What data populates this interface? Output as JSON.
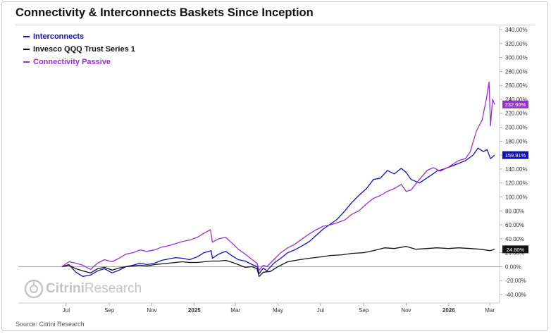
{
  "title": "Connectivity & Interconnects Baskets Since Inception",
  "source": "Source: Citrini Research",
  "watermark": {
    "brand": "Citrini",
    "brand_suffix": "Research",
    "icon": "citrini-logo-icon"
  },
  "chart_data": {
    "type": "line",
    "title": "Connectivity & Interconnects Baskets Since Inception",
    "xlabel": "",
    "ylabel": "",
    "y_axis_side": "right",
    "y_format": "percent",
    "ylim": [
      -45,
      350
    ],
    "yticks": [
      340,
      320,
      300,
      280,
      260,
      240,
      220,
      200,
      180,
      160,
      140,
      120,
      100,
      80,
      60,
      40,
      20,
      0,
      -20,
      -40
    ],
    "x_start": "2024-06-20",
    "x_end": "2026-03-12",
    "xticks": [
      {
        "date": "2024-07-01",
        "label": "Jul",
        "bold": false
      },
      {
        "date": "2024-09-01",
        "label": "Sep",
        "bold": false
      },
      {
        "date": "2024-11-01",
        "label": "Nov",
        "bold": false
      },
      {
        "date": "2025-01-01",
        "label": "2025",
        "bold": true
      },
      {
        "date": "2025-03-01",
        "label": "Mar",
        "bold": false
      },
      {
        "date": "2025-05-01",
        "label": "May",
        "bold": false
      },
      {
        "date": "2025-07-01",
        "label": "Jul",
        "bold": false
      },
      {
        "date": "2025-09-01",
        "label": "Sep",
        "bold": false
      },
      {
        "date": "2025-11-01",
        "label": "Nov",
        "bold": false
      },
      {
        "date": "2026-01-01",
        "label": "2026",
        "bold": true
      },
      {
        "date": "2026-03-01",
        "label": "Mar",
        "bold": false
      }
    ],
    "grid": false,
    "legend_position": "top-left",
    "series": [
      {
        "name": "Interconnects",
        "color": "#1010c0",
        "last_label": "159.91%",
        "points": [
          [
            "2024-06-25",
            0
          ],
          [
            "2024-07-05",
            3
          ],
          [
            "2024-07-15",
            -8
          ],
          [
            "2024-07-25",
            -14
          ],
          [
            "2024-08-05",
            -12
          ],
          [
            "2024-08-15",
            -6
          ],
          [
            "2024-08-25",
            -3
          ],
          [
            "2024-09-05",
            -9
          ],
          [
            "2024-09-15",
            -5
          ],
          [
            "2024-09-25",
            0
          ],
          [
            "2024-10-05",
            2
          ],
          [
            "2024-10-15",
            5
          ],
          [
            "2024-10-25",
            3
          ],
          [
            "2024-11-05",
            5
          ],
          [
            "2024-11-15",
            9
          ],
          [
            "2024-11-25",
            11
          ],
          [
            "2024-12-05",
            13
          ],
          [
            "2024-12-15",
            12
          ],
          [
            "2024-12-25",
            10
          ],
          [
            "2025-01-05",
            14
          ],
          [
            "2025-01-15",
            20
          ],
          [
            "2025-01-25",
            23
          ],
          [
            "2025-01-27",
            12
          ],
          [
            "2025-02-05",
            18
          ],
          [
            "2025-02-15",
            22
          ],
          [
            "2025-02-25",
            15
          ],
          [
            "2025-03-05",
            10
          ],
          [
            "2025-03-15",
            8
          ],
          [
            "2025-03-25",
            3
          ],
          [
            "2025-04-01",
            0
          ],
          [
            "2025-04-04",
            -10
          ],
          [
            "2025-04-10",
            -2
          ],
          [
            "2025-04-15",
            -6
          ],
          [
            "2025-04-25",
            5
          ],
          [
            "2025-05-05",
            12
          ],
          [
            "2025-05-15",
            20
          ],
          [
            "2025-05-25",
            24
          ],
          [
            "2025-06-05",
            30
          ],
          [
            "2025-06-15",
            36
          ],
          [
            "2025-06-25",
            45
          ],
          [
            "2025-07-05",
            54
          ],
          [
            "2025-07-15",
            61
          ],
          [
            "2025-07-25",
            68
          ],
          [
            "2025-08-05",
            80
          ],
          [
            "2025-08-15",
            92
          ],
          [
            "2025-08-25",
            102
          ],
          [
            "2025-09-05",
            112
          ],
          [
            "2025-09-15",
            125
          ],
          [
            "2025-09-25",
            127
          ],
          [
            "2025-10-05",
            138
          ],
          [
            "2025-10-15",
            133
          ],
          [
            "2025-10-25",
            141
          ],
          [
            "2025-11-01",
            135
          ],
          [
            "2025-11-08",
            125
          ],
          [
            "2025-11-20",
            120
          ],
          [
            "2025-12-05",
            130
          ],
          [
            "2025-12-15",
            137
          ],
          [
            "2025-12-25",
            140
          ],
          [
            "2026-01-05",
            144
          ],
          [
            "2026-01-15",
            148
          ],
          [
            "2026-01-25",
            152
          ],
          [
            "2026-02-05",
            160
          ],
          [
            "2026-02-12",
            170
          ],
          [
            "2026-02-20",
            165
          ],
          [
            "2026-02-25",
            168
          ],
          [
            "2026-03-02",
            155
          ],
          [
            "2026-03-08",
            160
          ]
        ]
      },
      {
        "name": "Invesco QQQ Trust Series 1",
        "color": "#111111",
        "last_label": "24.80%",
        "points": [
          [
            "2024-06-25",
            0
          ],
          [
            "2024-07-05",
            2
          ],
          [
            "2024-07-15",
            -3
          ],
          [
            "2024-07-25",
            -6
          ],
          [
            "2024-08-05",
            -9
          ],
          [
            "2024-08-15",
            -3
          ],
          [
            "2024-08-25",
            -1
          ],
          [
            "2024-09-05",
            -5
          ],
          [
            "2024-09-15",
            -2
          ],
          [
            "2024-09-25",
            0
          ],
          [
            "2024-10-05",
            1
          ],
          [
            "2024-10-15",
            2
          ],
          [
            "2024-10-25",
            1
          ],
          [
            "2024-11-05",
            3
          ],
          [
            "2024-11-15",
            4
          ],
          [
            "2024-11-25",
            5
          ],
          [
            "2024-12-05",
            6
          ],
          [
            "2024-12-15",
            7
          ],
          [
            "2024-12-25",
            6
          ],
          [
            "2025-01-05",
            6
          ],
          [
            "2025-01-15",
            7
          ],
          [
            "2025-01-25",
            8
          ],
          [
            "2025-02-05",
            8
          ],
          [
            "2025-02-15",
            9
          ],
          [
            "2025-02-25",
            6
          ],
          [
            "2025-03-05",
            3
          ],
          [
            "2025-03-15",
            -1
          ],
          [
            "2025-03-25",
            0
          ],
          [
            "2025-04-01",
            -3
          ],
          [
            "2025-04-04",
            -14
          ],
          [
            "2025-04-10",
            -8
          ],
          [
            "2025-04-20",
            -7
          ],
          [
            "2025-05-01",
            0
          ],
          [
            "2025-05-15",
            7
          ],
          [
            "2025-06-01",
            10
          ],
          [
            "2025-06-15",
            12
          ],
          [
            "2025-07-01",
            14
          ],
          [
            "2025-07-15",
            16
          ],
          [
            "2025-08-01",
            17
          ],
          [
            "2025-08-15",
            19
          ],
          [
            "2025-09-01",
            20
          ],
          [
            "2025-09-15",
            23
          ],
          [
            "2025-10-01",
            27
          ],
          [
            "2025-10-15",
            26
          ],
          [
            "2025-11-01",
            29
          ],
          [
            "2025-11-15",
            25
          ],
          [
            "2025-12-01",
            26
          ],
          [
            "2025-12-15",
            27
          ],
          [
            "2026-01-01",
            26
          ],
          [
            "2026-01-15",
            27
          ],
          [
            "2026-02-01",
            26
          ],
          [
            "2026-02-15",
            25
          ],
          [
            "2026-03-01",
            23
          ],
          [
            "2026-03-08",
            24.8
          ]
        ]
      },
      {
        "name": "Connectivity Passive",
        "color": "#9a2fd6",
        "last_label": "232.66%",
        "points": [
          [
            "2024-06-25",
            0
          ],
          [
            "2024-07-05",
            7
          ],
          [
            "2024-07-15",
            5
          ],
          [
            "2024-07-25",
            2
          ],
          [
            "2024-08-05",
            -4
          ],
          [
            "2024-08-15",
            5
          ],
          [
            "2024-08-25",
            10
          ],
          [
            "2024-09-05",
            7
          ],
          [
            "2024-09-15",
            12
          ],
          [
            "2024-09-25",
            18
          ],
          [
            "2024-10-05",
            20
          ],
          [
            "2024-10-15",
            24
          ],
          [
            "2024-10-25",
            22
          ],
          [
            "2024-11-05",
            24
          ],
          [
            "2024-11-15",
            28
          ],
          [
            "2024-11-25",
            30
          ],
          [
            "2024-12-05",
            33
          ],
          [
            "2024-12-15",
            36
          ],
          [
            "2024-12-25",
            38
          ],
          [
            "2025-01-05",
            42
          ],
          [
            "2025-01-15",
            48
          ],
          [
            "2025-01-24",
            53
          ],
          [
            "2025-01-27",
            35
          ],
          [
            "2025-02-05",
            40
          ],
          [
            "2025-02-15",
            42
          ],
          [
            "2025-02-25",
            33
          ],
          [
            "2025-03-05",
            25
          ],
          [
            "2025-03-15",
            18
          ],
          [
            "2025-03-25",
            10
          ],
          [
            "2025-04-01",
            5
          ],
          [
            "2025-04-04",
            -5
          ],
          [
            "2025-04-10",
            2
          ],
          [
            "2025-04-15",
            0
          ],
          [
            "2025-04-25",
            10
          ],
          [
            "2025-05-05",
            20
          ],
          [
            "2025-05-15",
            27
          ],
          [
            "2025-05-25",
            32
          ],
          [
            "2025-06-05",
            40
          ],
          [
            "2025-06-15",
            47
          ],
          [
            "2025-06-25",
            53
          ],
          [
            "2025-07-05",
            58
          ],
          [
            "2025-07-15",
            60
          ],
          [
            "2025-07-25",
            63
          ],
          [
            "2025-08-05",
            67
          ],
          [
            "2025-08-15",
            75
          ],
          [
            "2025-08-25",
            80
          ],
          [
            "2025-09-05",
            90
          ],
          [
            "2025-09-15",
            98
          ],
          [
            "2025-09-25",
            102
          ],
          [
            "2025-10-05",
            108
          ],
          [
            "2025-10-15",
            112
          ],
          [
            "2025-10-25",
            118
          ],
          [
            "2025-11-01",
            108
          ],
          [
            "2025-11-08",
            110
          ],
          [
            "2025-11-20",
            125
          ],
          [
            "2025-12-01",
            138
          ],
          [
            "2025-12-10",
            142
          ],
          [
            "2025-12-20",
            137
          ],
          [
            "2026-01-01",
            143
          ],
          [
            "2026-01-15",
            152
          ],
          [
            "2026-01-25",
            155
          ],
          [
            "2026-02-01",
            165
          ],
          [
            "2026-02-10",
            195
          ],
          [
            "2026-02-18",
            210
          ],
          [
            "2026-02-24",
            240
          ],
          [
            "2026-02-28",
            265
          ],
          [
            "2026-03-02",
            202
          ],
          [
            "2026-03-05",
            240
          ],
          [
            "2026-03-08",
            232.66
          ]
        ]
      }
    ]
  }
}
